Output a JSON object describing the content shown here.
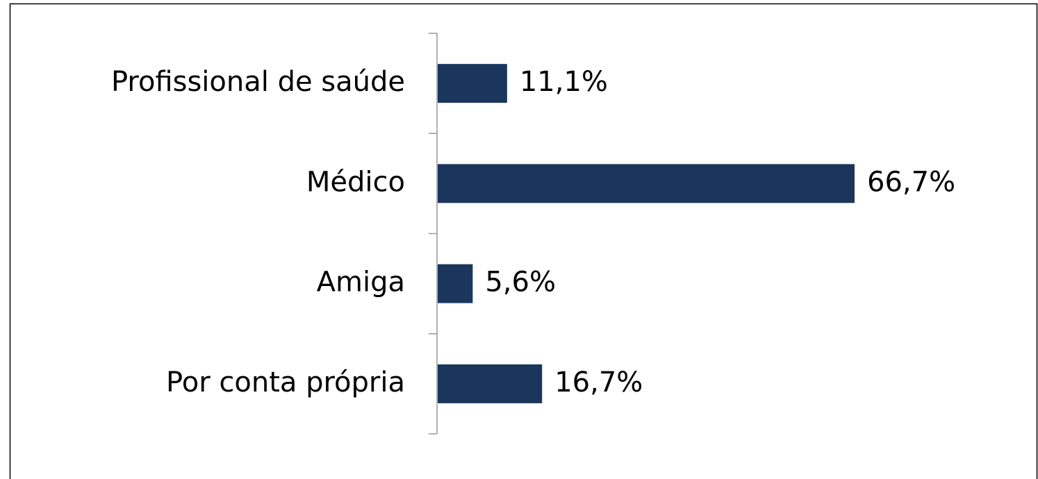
{
  "chart_data": {
    "type": "bar",
    "orientation": "horizontal",
    "categories": [
      "Profissional de saúde",
      "Médico",
      "Amiga",
      "Por conta própria"
    ],
    "values": [
      11.1,
      66.7,
      5.6,
      16.7
    ],
    "value_labels": [
      "11,1%",
      "66,7%",
      "5,6%",
      "16,7%"
    ],
    "color": "#1b365d"
  }
}
